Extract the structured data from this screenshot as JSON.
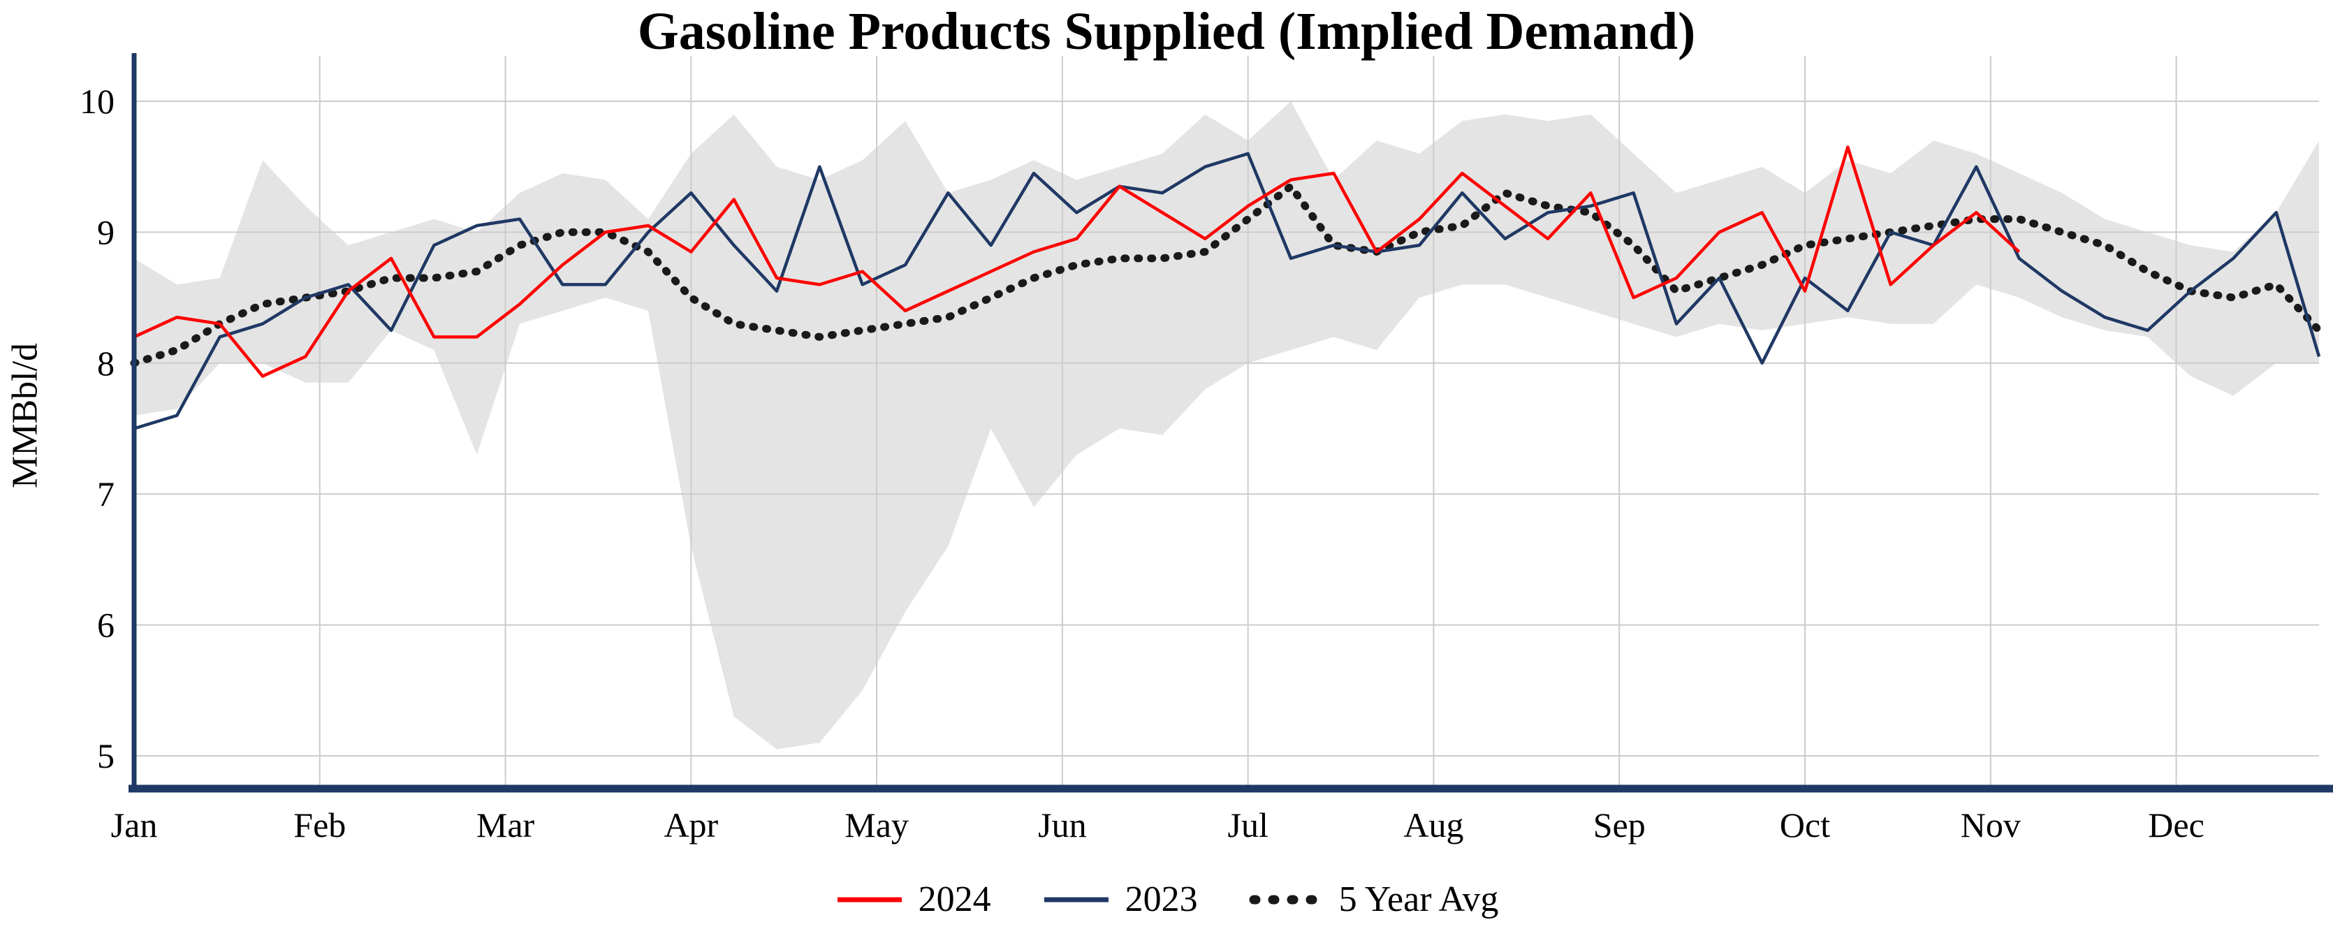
{
  "chart_data": {
    "type": "line",
    "title": "Gasoline Products Supplied (Implied Demand)",
    "ylabel": "MMBbl/d",
    "xlabel": "",
    "ylim": [
      5,
      10
    ],
    "y_ticks": [
      5,
      6,
      7,
      8,
      9,
      10
    ],
    "x_tick_labels": [
      "Jan",
      "Feb",
      "Mar",
      "Apr",
      "May",
      "Jun",
      "Jul",
      "Aug",
      "Sep",
      "Oct",
      "Nov",
      "Dec"
    ],
    "x_unit": "week",
    "weeks_per_year": 52,
    "grid": true,
    "legend_position": "bottom",
    "axis_color": "#1f3864",
    "grid_color": "#cccccc",
    "shaded_band": {
      "description": "5-year min/max range",
      "fill": "#e4e4e4",
      "max": [
        8.8,
        8.6,
        8.65,
        9.55,
        9.2,
        8.9,
        9.0,
        9.1,
        9.0,
        9.3,
        9.45,
        9.4,
        9.1,
        9.6,
        9.9,
        9.5,
        9.4,
        9.55,
        9.85,
        9.3,
        9.4,
        9.55,
        9.4,
        9.5,
        9.6,
        9.9,
        9.7,
        10.0,
        9.4,
        9.7,
        9.6,
        9.85,
        9.9,
        9.85,
        9.9,
        9.6,
        9.3,
        9.4,
        9.5,
        9.3,
        9.55,
        9.45,
        9.7,
        9.6,
        9.45,
        9.3,
        9.1,
        9.0,
        8.9,
        8.85,
        9.15,
        9.7
      ],
      "min": [
        7.6,
        7.65,
        8.0,
        8.0,
        7.85,
        7.85,
        8.25,
        8.1,
        7.3,
        8.3,
        8.4,
        8.5,
        8.4,
        6.6,
        5.3,
        5.05,
        5.1,
        5.5,
        6.1,
        6.6,
        7.5,
        6.9,
        7.3,
        7.5,
        7.45,
        7.8,
        8.0,
        8.1,
        8.2,
        8.1,
        8.5,
        8.6,
        8.6,
        8.5,
        8.4,
        8.3,
        8.2,
        8.3,
        8.25,
        8.3,
        8.35,
        8.3,
        8.3,
        8.6,
        8.5,
        8.35,
        8.25,
        8.2,
        7.9,
        7.75,
        8.0,
        8.0
      ]
    },
    "series": [
      {
        "name": "2024",
        "color": "#ff0000",
        "style": "solid",
        "values": [
          8.2,
          8.35,
          8.3,
          7.9,
          8.05,
          8.55,
          8.8,
          8.2,
          8.2,
          8.45,
          8.75,
          9.0,
          9.05,
          8.85,
          9.25,
          8.65,
          8.6,
          8.7,
          8.4,
          8.55,
          8.7,
          8.85,
          8.95,
          9.35,
          9.15,
          8.95,
          9.2,
          9.4,
          9.45,
          8.85,
          9.1,
          9.45,
          9.2,
          8.95,
          9.3,
          8.5,
          8.65,
          9.0,
          9.15,
          8.55,
          9.65,
          8.6,
          8.9,
          9.15,
          8.85
        ]
      },
      {
        "name": "2023",
        "color": "#1f3864",
        "style": "solid",
        "values": [
          7.5,
          7.6,
          8.2,
          8.3,
          8.5,
          8.6,
          8.25,
          8.9,
          9.05,
          9.1,
          8.6,
          8.6,
          9.0,
          9.3,
          8.9,
          8.55,
          9.5,
          8.6,
          8.75,
          9.3,
          8.9,
          9.45,
          9.15,
          9.35,
          9.3,
          9.5,
          9.6,
          8.8,
          8.9,
          8.85,
          8.9,
          9.3,
          8.95,
          9.15,
          9.2,
          9.3,
          8.3,
          8.65,
          8.0,
          8.65,
          8.4,
          9.0,
          8.9,
          9.5,
          8.8,
          8.55,
          8.35,
          8.25,
          8.55,
          8.8,
          9.15,
          8.05
        ]
      },
      {
        "name": "5 Year Avg",
        "color": "#1a1a1a",
        "style": "dotted",
        "values": [
          8.0,
          8.1,
          8.3,
          8.45,
          8.5,
          8.55,
          8.65,
          8.65,
          8.7,
          8.9,
          9.0,
          9.0,
          8.85,
          8.5,
          8.3,
          8.25,
          8.2,
          8.25,
          8.3,
          8.35,
          8.5,
          8.65,
          8.75,
          8.8,
          8.8,
          8.85,
          9.1,
          9.35,
          8.9,
          8.85,
          9.0,
          9.05,
          9.3,
          9.2,
          9.15,
          8.9,
          8.55,
          8.65,
          8.75,
          8.9,
          8.95,
          9.0,
          9.05,
          9.1,
          9.1,
          9.0,
          8.9,
          8.7,
          8.55,
          8.5,
          8.6,
          8.25
        ]
      }
    ]
  }
}
